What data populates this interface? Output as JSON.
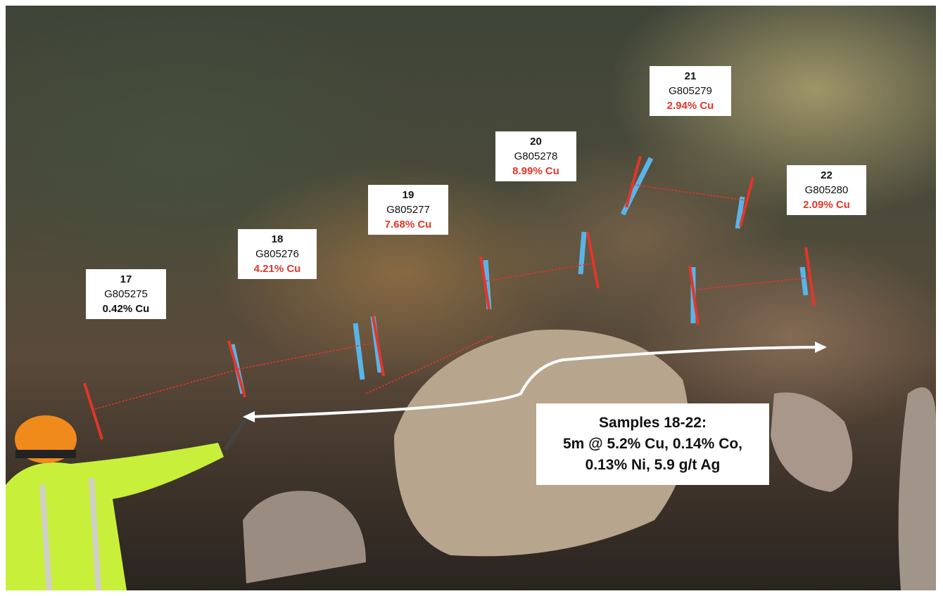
{
  "samples": [
    {
      "number": "17",
      "id": "G805275",
      "grade": "0.42% Cu",
      "grade_color": "#111111"
    },
    {
      "number": "18",
      "id": "G805276",
      "grade": "4.21% Cu",
      "grade_color": "#e2362a"
    },
    {
      "number": "19",
      "id": "G805277",
      "grade": "7.68% Cu",
      "grade_color": "#e2362a"
    },
    {
      "number": "20",
      "id": "G805278",
      "grade": "8.99% Cu",
      "grade_color": "#e2362a"
    },
    {
      "number": "21",
      "id": "G805279",
      "grade": "2.94% Cu",
      "grade_color": "#e2362a"
    },
    {
      "number": "22",
      "id": "G805280",
      "grade": "2.09% Cu",
      "grade_color": "#e2362a"
    }
  ],
  "summary": {
    "line1": "Samples 18-22:",
    "line2": "5m @ 5.2% Cu, 0.14% Co,",
    "line3": "0.13% Ni, 5.9 g/t Ag"
  },
  "colors": {
    "marker": "#e2362a",
    "paint": "#5ab4e8",
    "arrow": "#ffffff"
  }
}
